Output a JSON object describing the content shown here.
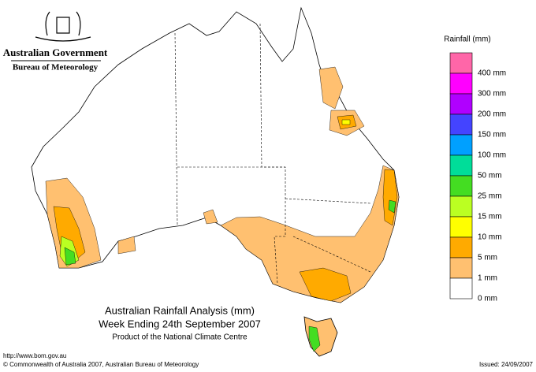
{
  "header": {
    "government": "Australian Government",
    "bureau": "Bureau of Meteorology"
  },
  "title": [
    "Australian Rainfall Analysis (mm)",
    "Week Ending 24th September 2007",
    "Product of the National Climate Centre"
  ],
  "legend": {
    "title": "Rainfall (mm)",
    "items": [
      {
        "label": "400 mm",
        "color": "#ff66a8"
      },
      {
        "label": "300 mm",
        "color": "#ff00ff"
      },
      {
        "label": "200 mm",
        "color": "#b000ff"
      },
      {
        "label": "150 mm",
        "color": "#4444ff"
      },
      {
        "label": "100 mm",
        "color": "#00a0ff"
      },
      {
        "label": "50 mm",
        "color": "#00dd99"
      },
      {
        "label": "25 mm",
        "color": "#44dd22"
      },
      {
        "label": "15 mm",
        "color": "#bbff22"
      },
      {
        "label": "10 mm",
        "color": "#ffff00"
      },
      {
        "label": "5 mm",
        "color": "#ffaa00"
      },
      {
        "label": "1 mm",
        "color": "#ffc070"
      },
      {
        "label": "0 mm",
        "color": "#ffffff"
      }
    ]
  },
  "footer": {
    "url": "http://www.bom.gov.au",
    "copyright": "© Commonwealth of Australia 2007, Australian Bureau of Meteorology",
    "issued": "Issued: 24/09/2007"
  }
}
